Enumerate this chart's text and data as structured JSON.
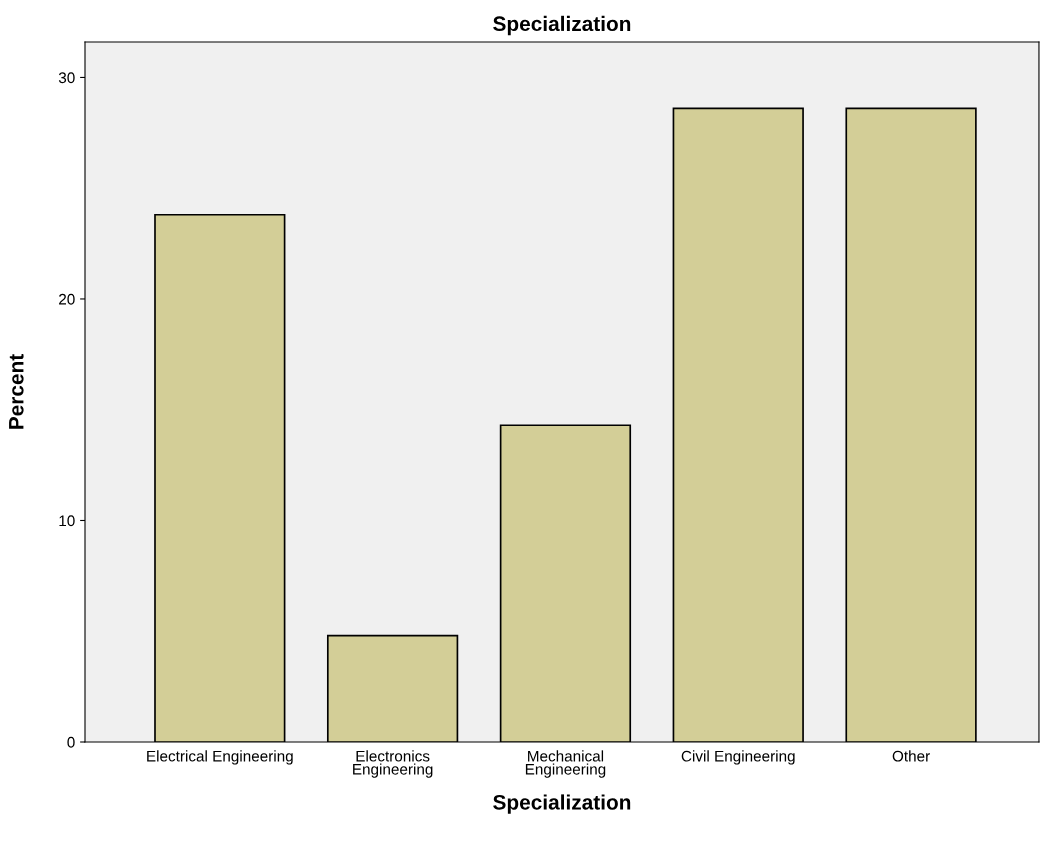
{
  "chart_data": {
    "type": "bar",
    "title": "Specialization",
    "xlabel": "Specialization",
    "ylabel": "Percent",
    "categories": [
      "Electrical Engineering",
      "Electronics\nEngineering",
      "Mechanical\nEngineering",
      "Civil Engineering",
      "Other"
    ],
    "values": [
      23.8,
      4.8,
      14.3,
      28.6,
      28.6
    ],
    "color": "#d3ce97",
    "ylim": [
      0,
      31.6
    ],
    "yticks": [
      0,
      10,
      20,
      30
    ],
    "grid": false,
    "legend": false
  }
}
